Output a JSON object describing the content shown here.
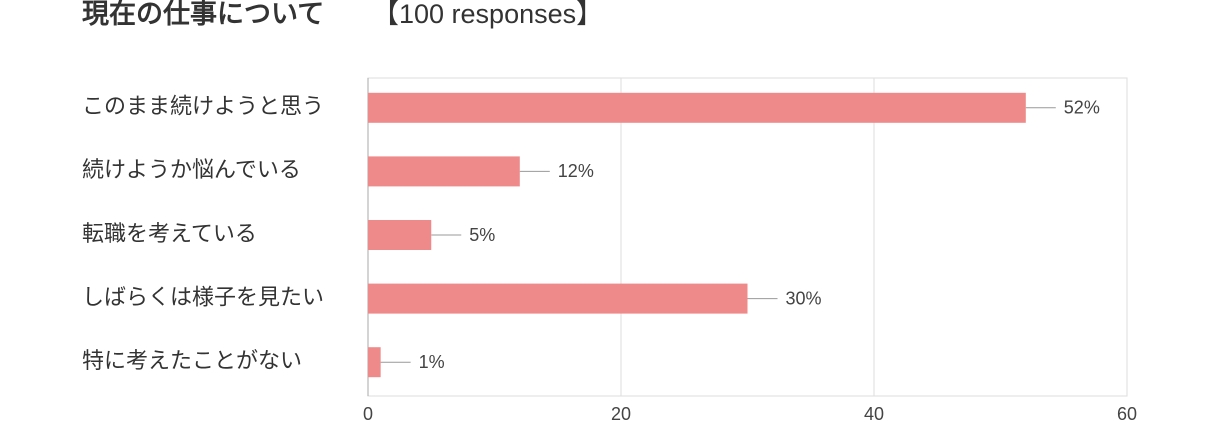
{
  "chart_data": {
    "type": "bar",
    "orientation": "horizontal",
    "title": "現在の仕事について",
    "subtitle": "【100 responses】",
    "categories": [
      "このまま続けようと思う",
      "続けようか悩んでいる",
      "転職を考えている",
      "しばらくは様子を見たい",
      "特に考えたことがない"
    ],
    "values": [
      52,
      12,
      5,
      30,
      1
    ],
    "value_labels": [
      "52%",
      "12%",
      "5%",
      "30%",
      "1%"
    ],
    "color": "#ef8a8a",
    "xlim": [
      0,
      60
    ],
    "xticks": [
      0,
      20,
      40,
      60
    ],
    "grid": true
  }
}
